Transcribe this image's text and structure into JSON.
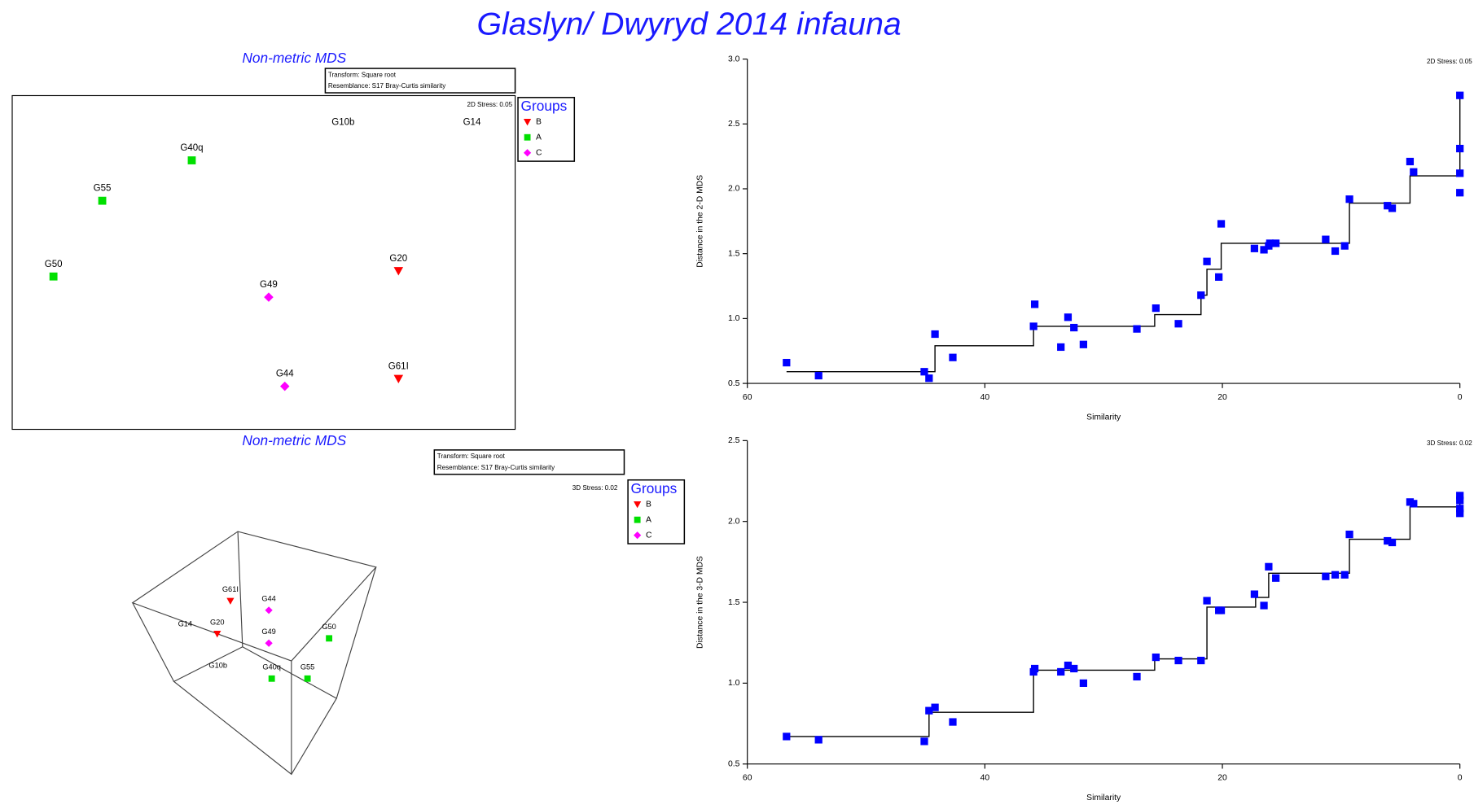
{
  "title": "Glaslyn/ Dwyryd 2014 infauna",
  "chart_data": [
    {
      "type": "mds",
      "subtitle": "Non-metric MDS",
      "transform": "Transform: Square root",
      "resemblance": "Resemblance: S17 Bray-Curtis similarity",
      "stress": "2D Stress: 0.05",
      "legend_title": "Groups",
      "xlim": [
        0,
        100
      ],
      "ylim": [
        0,
        100
      ],
      "series": [
        {
          "name": "B",
          "color": "#ff0000",
          "marker": "triangle",
          "labels": [
            "G20",
            "G61I"
          ],
          "x": [
            76.8,
            76.8
          ],
          "y": [
            47.5,
            15.2
          ]
        },
        {
          "name": "A",
          "color": "#00e000",
          "marker": "square",
          "labels": [
            "G40q",
            "G55",
            "G50"
          ],
          "x": [
            35.7,
            17.9,
            8.2
          ],
          "y": [
            80.6,
            68.5,
            45.8
          ]
        },
        {
          "name": "C",
          "color": "#ff00ff",
          "marker": "diamond",
          "labels": [
            "G49",
            "G44"
          ],
          "x": [
            51.0,
            54.2
          ],
          "y": [
            39.6,
            12.9
          ]
        }
      ],
      "other_samples": {
        "labels": [
          "G10b",
          "G14"
        ],
        "x": [
          65.8,
          91.4
        ],
        "y": [
          91.9,
          91.9
        ]
      }
    },
    {
      "type": "mds",
      "subtitle": "Non-metric MDS",
      "transform": "Transform: Square root",
      "resemblance": "Resemblance: S17 Bray-Curtis similarity",
      "stress": "3D Stress: 0.02",
      "legend_title": "Groups",
      "xlim": [
        0,
        100
      ],
      "ylim": [
        0,
        100
      ],
      "series": [
        {
          "name": "B",
          "color": "#ff0000",
          "marker": "triangle",
          "labels": [
            "G61I",
            "G20"
          ],
          "x": [
            41.1,
            36.1
          ],
          "y": [
            70.0,
            57.0
          ]
        },
        {
          "name": "A",
          "color": "#00e000",
          "marker": "square",
          "labels": [
            "G50",
            "G40q",
            "G55"
          ],
          "x": [
            78.6,
            56.8,
            70.4
          ],
          "y": [
            55.2,
            39.3,
            39.3
          ]
        },
        {
          "name": "C",
          "color": "#ff00ff",
          "marker": "diamond",
          "labels": [
            "G44",
            "G49"
          ],
          "x": [
            55.7,
            55.7
          ],
          "y": [
            66.3,
            53.3
          ]
        }
      ],
      "other_samples": {
        "labels": [
          "G14",
          "G10b"
        ],
        "x": [
          23.9,
          36.4
        ],
        "y": [
          60.7,
          44.4
        ]
      }
    },
    {
      "type": "shepard",
      "xlabel": "Similarity",
      "ylabel": "Distance in the 2-D MDS",
      "stress": "2D Stress: 0.05",
      "color": "#0000ff",
      "xlim": [
        60,
        0
      ],
      "ylim": [
        0.5,
        3.0
      ],
      "xticks": [
        60,
        40,
        20,
        0
      ],
      "yticks": [
        0.5,
        {
          "value": 1,
          "label": "1.0"
        },
        1.5,
        {
          "value": 2,
          "label": "2.0"
        },
        2.5,
        {
          "value": 3,
          "label": "3.0"
        }
      ],
      "x": [
        56.7,
        54.0,
        45.1,
        44.7,
        44.2,
        42.7,
        35.9,
        35.8,
        33.6,
        33.0,
        32.5,
        31.7,
        27.2,
        25.6,
        23.7,
        21.8,
        21.3,
        20.3,
        20.1,
        17.3,
        16.5,
        16.1,
        16.0,
        15.5,
        11.3,
        10.5,
        9.7,
        9.3,
        6.1,
        5.7,
        4.2,
        3.9,
        0,
        0,
        0,
        0
      ],
      "y": [
        0.66,
        0.56,
        0.59,
        0.54,
        0.88,
        0.7,
        0.94,
        1.11,
        0.78,
        1.01,
        0.93,
        0.8,
        0.92,
        1.08,
        0.96,
        1.18,
        1.44,
        1.32,
        1.73,
        1.54,
        1.53,
        1.56,
        1.58,
        1.58,
        1.61,
        1.52,
        1.56,
        1.92,
        1.87,
        1.85,
        2.21,
        2.13,
        2.72,
        2.31,
        2.12,
        1.97
      ],
      "fit_x": [
        56.7,
        44.2,
        44.2,
        35.9,
        35.9,
        25.7,
        25.7,
        21.8,
        21.8,
        21.3,
        21.3,
        20.1,
        20.1,
        9.3,
        9.3,
        4.2,
        4.2,
        0,
        0
      ],
      "fit_y": [
        0.59,
        0.59,
        0.79,
        0.79,
        0.94,
        0.94,
        1.03,
        1.03,
        1.18,
        1.18,
        1.38,
        1.38,
        1.58,
        1.58,
        1.89,
        1.89,
        2.1,
        2.1,
        2.72
      ]
    },
    {
      "type": "shepard",
      "xlabel": "Similarity",
      "ylabel": "Distance in the 3-D MDS",
      "stress": "3D Stress: 0.02",
      "color": "#0000ff",
      "xlim": [
        60,
        0
      ],
      "ylim": [
        0.5,
        2.5
      ],
      "xticks": [
        60,
        40,
        20,
        0
      ],
      "yticks": [
        0.5,
        {
          "value": 1,
          "label": "1.0"
        },
        1.5,
        {
          "value": 2,
          "label": "2.0"
        },
        2.5
      ],
      "x": [
        56.7,
        54.0,
        45.1,
        44.7,
        44.2,
        42.7,
        35.9,
        35.8,
        33.6,
        33.0,
        32.5,
        31.7,
        27.2,
        25.6,
        23.7,
        21.8,
        21.3,
        20.3,
        20.1,
        17.3,
        16.5,
        16.1,
        15.5,
        11.3,
        10.5,
        9.7,
        9.3,
        6.1,
        5.7,
        4.2,
        3.9,
        0,
        0,
        0,
        0
      ],
      "y": [
        0.67,
        0.65,
        0.64,
        0.83,
        0.85,
        0.76,
        1.07,
        1.09,
        1.07,
        1.11,
        1.09,
        1.0,
        1.04,
        1.16,
        1.14,
        1.14,
        1.51,
        1.45,
        1.45,
        1.55,
        1.48,
        1.72,
        1.65,
        1.66,
        1.67,
        1.67,
        1.92,
        1.88,
        1.87,
        2.12,
        2.11,
        2.16,
        2.13,
        2.08,
        2.05
      ],
      "fit_x": [
        56.7,
        44.7,
        44.7,
        35.9,
        35.9,
        25.7,
        25.7,
        21.3,
        21.3,
        17.2,
        17.2,
        16.1,
        16.1,
        9.3,
        9.3,
        4.2,
        4.2,
        0,
        0
      ],
      "fit_y": [
        0.67,
        0.67,
        0.82,
        0.82,
        1.08,
        1.08,
        1.15,
        1.15,
        1.47,
        1.47,
        1.53,
        1.53,
        1.68,
        1.68,
        1.89,
        1.89,
        2.09,
        2.09,
        2.16
      ]
    }
  ]
}
